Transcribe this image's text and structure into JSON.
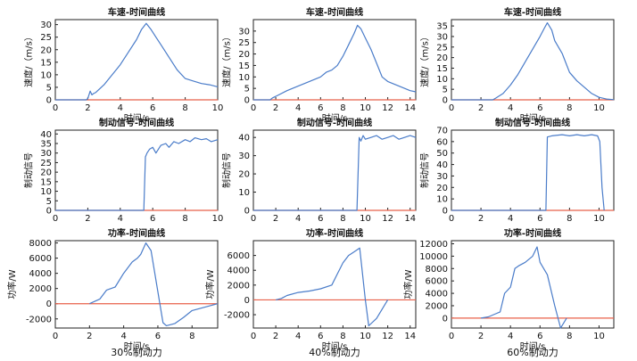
{
  "chart_data": [
    {
      "type": "line",
      "title": "车速-时间曲线",
      "xlabel": "时间/s",
      "ylabel": "速度/（m/s）",
      "xlim": [
        0,
        10
      ],
      "ylim": [
        0,
        32
      ],
      "xticks": [
        "0",
        "2",
        "4",
        "6",
        "8",
        "10"
      ],
      "yticks": [
        "0",
        "5",
        "10",
        "15",
        "20",
        "25",
        "30"
      ],
      "reference": {
        "y": 0,
        "color": "#e8604a"
      },
      "series": [
        {
          "color": "#4a7cc9",
          "x": [
            0,
            1.9,
            2.0,
            2.15,
            2.25,
            2.35,
            2.5,
            3,
            3.5,
            4,
            4.5,
            5,
            5.3,
            5.6,
            5.9,
            6.2,
            6.5,
            7,
            7.5,
            8,
            8.5,
            9,
            9.5,
            10
          ],
          "y": [
            0,
            0,
            0.5,
            3.5,
            2,
            2.5,
            3,
            6,
            10,
            14,
            19,
            24,
            28,
            30.5,
            28,
            25,
            22,
            17,
            12,
            8.5,
            7.5,
            6.5,
            6,
            5.2
          ]
        }
      ]
    },
    {
      "type": "line",
      "title": "车速-时间曲线",
      "xlabel": "时间/s",
      "ylabel": "速度/（m/s）",
      "xlim": [
        0,
        14.5
      ],
      "ylim": [
        0,
        35
      ],
      "xticks": [
        "0",
        "2",
        "4",
        "6",
        "8",
        "10",
        "12",
        "14"
      ],
      "yticks": [
        "0",
        "5",
        "10",
        "15",
        "20",
        "25",
        "30"
      ],
      "reference": {
        "y": 0,
        "color": "#e8604a"
      },
      "series": [
        {
          "color": "#4a7cc9",
          "x": [
            0,
            1.5,
            1.7,
            2,
            3,
            4,
            5,
            6,
            6.5,
            7,
            7.5,
            8,
            8.5,
            9,
            9.3,
            9.6,
            10,
            10.5,
            11,
            11.5,
            12,
            13,
            14,
            14.5
          ],
          "y": [
            0,
            0,
            0.8,
            1.5,
            4,
            6,
            8,
            10,
            12,
            13,
            15,
            19,
            24,
            29,
            32.5,
            31,
            27,
            22,
            16,
            10,
            8,
            6,
            4,
            3.5
          ]
        }
      ]
    },
    {
      "type": "line",
      "title": "车速-时间曲线",
      "xlabel": "时间/s",
      "ylabel": "速度/（m/s）",
      "xlim": [
        0,
        11
      ],
      "ylim": [
        0,
        38
      ],
      "xticks": [
        "0",
        "2",
        "4",
        "6",
        "8",
        "10"
      ],
      "yticks": [
        "0",
        "5",
        "10",
        "15",
        "20",
        "25",
        "30",
        "35"
      ],
      "reference": {
        "y": 0,
        "color": "#e8604a"
      },
      "series": [
        {
          "color": "#4a7cc9",
          "x": [
            0,
            2.8,
            3,
            3.5,
            4,
            4.5,
            5,
            5.5,
            6,
            6.3,
            6.5,
            6.8,
            7,
            7.5,
            8,
            8.5,
            9,
            9.5,
            10,
            10.5,
            11
          ],
          "y": [
            0,
            0,
            0.8,
            3,
            7,
            12,
            18,
            24,
            30,
            34,
            36.5,
            33,
            28,
            22,
            13,
            9,
            6,
            3,
            1.2,
            0.4,
            0.1
          ]
        }
      ]
    },
    {
      "type": "line",
      "title": "制动信号-时间曲线",
      "xlabel": "",
      "ylabel": "制动信号",
      "xlim": [
        0,
        10
      ],
      "ylim": [
        0,
        42
      ],
      "xticks": [
        "0",
        "2",
        "4",
        "6",
        "8",
        "10"
      ],
      "yticks": [
        "0",
        "5",
        "10",
        "15",
        "20",
        "25",
        "30",
        "35",
        "40"
      ],
      "reference": {
        "y": 0,
        "color": "#e8604a"
      },
      "series": [
        {
          "color": "#4a7cc9",
          "x": [
            0,
            5.45,
            5.55,
            5.65,
            5.8,
            6,
            6.2,
            6.5,
            6.8,
            7,
            7.3,
            7.6,
            8,
            8.3,
            8.6,
            9,
            9.3,
            9.6,
            10
          ],
          "y": [
            0,
            0,
            28,
            30,
            32,
            33,
            30,
            34,
            35,
            33,
            36,
            35,
            37,
            36,
            38,
            37,
            37.5,
            36,
            37
          ]
        }
      ]
    },
    {
      "type": "line",
      "title": "制动信号-时间曲线",
      "xlabel": "",
      "ylabel": "制动信号",
      "xlim": [
        0,
        14.5
      ],
      "ylim": [
        0,
        44
      ],
      "xticks": [
        "0",
        "2",
        "4",
        "6",
        "8",
        "10",
        "12",
        "14"
      ],
      "yticks": [
        "0",
        "10",
        "20",
        "30",
        "40"
      ],
      "reference": {
        "y": 0,
        "color": "#e8604a"
      },
      "series": [
        {
          "color": "#4a7cc9",
          "x": [
            0,
            9.25,
            9.45,
            9.6,
            9.8,
            10,
            10.5,
            11,
            11.5,
            12,
            12.5,
            13,
            13.5,
            14,
            14.5
          ],
          "y": [
            0,
            0,
            40,
            38,
            41,
            39,
            40,
            41,
            39,
            40,
            41,
            39,
            40,
            41,
            40
          ]
        }
      ]
    },
    {
      "type": "line",
      "title": "制动信号-时间曲线",
      "xlabel": "",
      "ylabel": "制动信号",
      "xlim": [
        0,
        11
      ],
      "ylim": [
        0,
        70
      ],
      "xticks": [
        "0",
        "2",
        "4",
        "6",
        "8",
        "10"
      ],
      "yticks": [
        "0",
        "10",
        "20",
        "30",
        "40",
        "50",
        "60",
        "70"
      ],
      "reference": {
        "y": 0,
        "color": "#e8604a"
      },
      "series": [
        {
          "color": "#4a7cc9",
          "x": [
            0,
            6.4,
            6.5,
            6.8,
            7.5,
            8,
            8.5,
            9,
            9.5,
            9.9,
            10.05,
            10.2,
            10.35
          ],
          "y": [
            0,
            0,
            64,
            65,
            66,
            65,
            66,
            65,
            66,
            65,
            60,
            20,
            0
          ]
        }
      ]
    },
    {
      "type": "line",
      "title": "功率-时间曲线",
      "xlabel": "时间/s",
      "ylabel": "功率/W",
      "xlim": [
        0,
        9.5
      ],
      "ylim": [
        -3200,
        8300
      ],
      "xticks": [
        "0",
        "2",
        "4",
        "6",
        "8"
      ],
      "yticks": [
        "-2000",
        "0",
        "2000",
        "4000",
        "6000",
        "8000"
      ],
      "reference": {
        "y": 0,
        "color": "#e8604a"
      },
      "series": [
        {
          "color": "#4a7cc9",
          "x": [
            2,
            2.6,
            3,
            3.5,
            4,
            4.5,
            4.8,
            5,
            5.3,
            5.6,
            6.3,
            6.5,
            7,
            7.5,
            8,
            9.5
          ],
          "y": [
            0,
            600,
            1800,
            2200,
            4000,
            5500,
            6000,
            6500,
            8000,
            7000,
            -2500,
            -2900,
            -2600,
            -1800,
            -900,
            0
          ]
        }
      ]
    },
    {
      "type": "line",
      "title": "功率-时间曲线",
      "xlabel": "时间/s",
      "ylabel": "功率/W",
      "xlim": [
        0,
        14.5
      ],
      "ylim": [
        -3800,
        8000
      ],
      "xticks": [
        "0",
        "2",
        "4",
        "6",
        "8",
        "10",
        "12",
        "14"
      ],
      "yticks": [
        "-2000",
        "0",
        "2000",
        "4000",
        "6000"
      ],
      "reference": {
        "y": 0,
        "color": "#e8604a"
      },
      "series": [
        {
          "color": "#4a7cc9",
          "x": [
            2,
            2.5,
            3,
            4,
            5,
            6,
            7,
            7.5,
            8,
            8.5,
            9,
            9.5,
            10,
            10.3,
            11,
            12
          ],
          "y": [
            0,
            200,
            600,
            1000,
            1200,
            1500,
            2000,
            3500,
            5000,
            6000,
            6500,
            7000,
            0,
            -3500,
            -2500,
            0
          ]
        }
      ]
    },
    {
      "type": "line",
      "title": "功率-时间曲线",
      "xlabel": "时间/s",
      "ylabel": "功率/W",
      "xlim": [
        0,
        11
      ],
      "ylim": [
        -1600,
        12500
      ],
      "xticks": [
        "0",
        "2",
        "4",
        "6",
        "8",
        "10"
      ],
      "yticks": [
        "-2000",
        "0",
        "2000",
        "4000",
        "6000",
        "8000",
        "10000",
        "12000"
      ],
      "reference": {
        "y": 0,
        "color": "#e8604a"
      },
      "series": [
        {
          "color": "#4a7cc9",
          "x": [
            2,
            2.5,
            3,
            3.3,
            3.6,
            4,
            4.3,
            4.6,
            5,
            5.5,
            5.8,
            6,
            6.5,
            7,
            7.4,
            7.8
          ],
          "y": [
            0,
            200,
            700,
            1000,
            4000,
            5000,
            8000,
            8500,
            9000,
            10000,
            11500,
            9000,
            7000,
            2000,
            -1600,
            0
          ]
        }
      ]
    }
  ],
  "captions": [
    "30%制动力",
    "40%制动力",
    "60%制动力"
  ]
}
